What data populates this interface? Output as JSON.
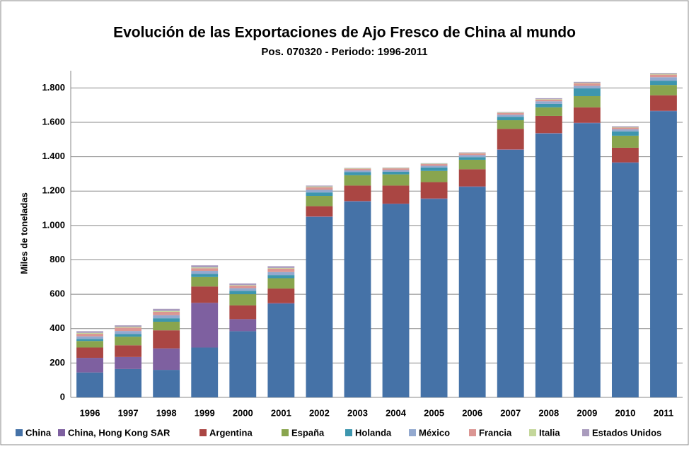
{
  "chart_data": {
    "type": "stacked_bar",
    "title": "Evolución de las Exportaciones de Ajo Fresco de China al mundo",
    "subtitle": "Pos. 070320 - Periodo: 1996-2011",
    "y_label": "Miles de toneladas",
    "categories": [
      "1996",
      "1997",
      "1998",
      "1999",
      "2000",
      "2001",
      "2002",
      "2003",
      "2004",
      "2005",
      "2006",
      "2007",
      "2008",
      "2009",
      "2010",
      "2011"
    ],
    "series": [
      {
        "name": "China",
        "color": "#4572a7",
        "values": [
          145,
          165,
          160,
          290,
          385,
          545,
          1050,
          1140,
          1125,
          1155,
          1225,
          1440,
          1535,
          1595,
          1365,
          1665
        ]
      },
      {
        "name": "China, Hong Kong SAR",
        "color": "#7e60a0",
        "values": [
          85,
          70,
          125,
          260,
          70,
          3,
          2,
          2,
          2,
          2,
          2,
          2,
          2,
          2,
          2,
          2
        ]
      },
      {
        "name": "Argentina",
        "color": "#aa4643",
        "values": [
          60,
          68,
          105,
          95,
          80,
          85,
          60,
          90,
          105,
          95,
          100,
          120,
          100,
          90,
          85,
          90
        ]
      },
      {
        "name": "España",
        "color": "#89a54e",
        "values": [
          38,
          50,
          50,
          55,
          65,
          60,
          60,
          60,
          65,
          65,
          55,
          50,
          50,
          65,
          70,
          60
        ]
      },
      {
        "name": "Holanda",
        "color": "#3d96ae",
        "values": [
          12,
          15,
          20,
          18,
          20,
          18,
          20,
          18,
          15,
          20,
          15,
          20,
          20,
          45,
          25,
          25
        ]
      },
      {
        "name": "México",
        "color": "#93a9cf",
        "values": [
          15,
          18,
          18,
          18,
          15,
          18,
          15,
          10,
          10,
          10,
          12,
          12,
          15,
          15,
          12,
          20
        ]
      },
      {
        "name": "Francia",
        "color": "#db9693",
        "values": [
          15,
          20,
          20,
          15,
          15,
          20,
          15,
          10,
          10,
          10,
          10,
          10,
          10,
          15,
          10,
          15
        ]
      },
      {
        "name": "Italia",
        "color": "#c4d79b",
        "values": [
          5,
          5,
          5,
          5,
          3,
          4,
          5,
          3,
          3,
          3,
          3,
          3,
          3,
          3,
          3,
          5
        ]
      },
      {
        "name": "Estados Unidos",
        "color": "#a99bbd",
        "values": [
          10,
          8,
          12,
          12,
          10,
          10,
          5,
          2,
          2,
          2,
          3,
          3,
          5,
          5,
          5,
          5
        ]
      }
    ],
    "ylim": [
      0,
      1900
    ],
    "yticks": [
      0,
      200,
      400,
      600,
      800,
      {
        "value": 1000,
        "label": "1.000"
      },
      {
        "value": 1200,
        "label": "1.200"
      },
      {
        "value": 1400,
        "label": "1.400"
      },
      {
        "value": 1600,
        "label": "1.600"
      },
      {
        "value": 1800,
        "label": "1.800"
      }
    ],
    "grid": true
  }
}
